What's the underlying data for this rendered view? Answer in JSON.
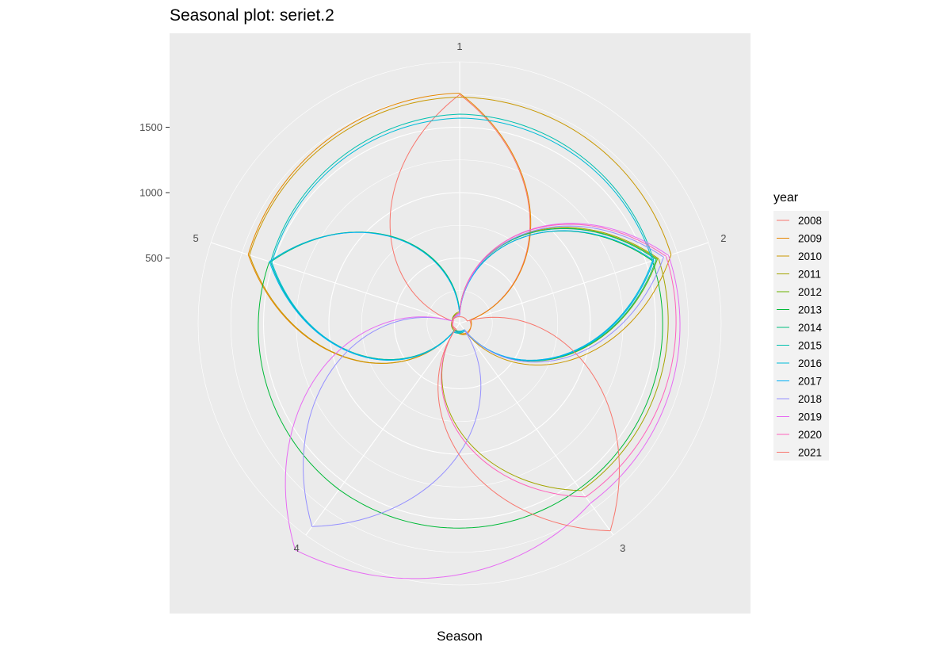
{
  "chart_data": {
    "type": "line",
    "subtype": "polar-seasonal",
    "title": "Seasonal plot: seriet.2",
    "xlabel": "Season",
    "ylabel": "",
    "seasons": [
      "1",
      "2",
      "3",
      "4",
      "5"
    ],
    "radial_ticks": [
      500,
      1000,
      1500
    ],
    "radial_range": [
      0,
      2000
    ],
    "grid": true,
    "legend_title": "year",
    "legend_position": "right",
    "series": [
      {
        "name": "2008",
        "color": "#F8766D",
        "values": [
          1750,
          80,
          100,
          50,
          60
        ]
      },
      {
        "name": "2009",
        "color": "#E58700",
        "values": [
          1760,
          90,
          90,
          60,
          1700
        ]
      },
      {
        "name": "2010",
        "color": "#C99800",
        "values": [
          1730,
          1700,
          100,
          60,
          1690
        ]
      },
      {
        "name": "2011",
        "color": "#A3A500",
        "values": [
          90,
          1600,
          1580,
          60,
          60
        ]
      },
      {
        "name": "2012",
        "color": "#6BB100",
        "values": [
          80,
          1590,
          60,
          70,
          60
        ]
      },
      {
        "name": "2013",
        "color": "#00BA38",
        "values": [
          70,
          1550,
          1560,
          1570,
          1530
        ]
      },
      {
        "name": "2014",
        "color": "#00BF7D",
        "values": [
          90,
          1580,
          60,
          60,
          1520
        ]
      },
      {
        "name": "2015",
        "color": "#00C0AF",
        "values": [
          1600,
          1560,
          70,
          80,
          1520
        ]
      },
      {
        "name": "2016",
        "color": "#00BCD8",
        "values": [
          1570,
          1550,
          60,
          80,
          1510
        ]
      },
      {
        "name": "2017",
        "color": "#00B0F6",
        "values": [
          60,
          1560,
          60,
          70,
          1530
        ]
      },
      {
        "name": "2018",
        "color": "#9590FF",
        "values": [
          60,
          1640,
          60,
          1920,
          60
        ]
      },
      {
        "name": "2019",
        "color": "#E76BF3",
        "values": [
          70,
          1680,
          1700,
          2140,
          60
        ]
      },
      {
        "name": "2020",
        "color": "#FF62BC",
        "values": [
          80,
          1660,
          1640,
          60,
          50
        ]
      },
      {
        "name": "2021",
        "color": "#F8766D",
        "values": [
          50,
          60,
          1960,
          60,
          60
        ]
      }
    ]
  }
}
